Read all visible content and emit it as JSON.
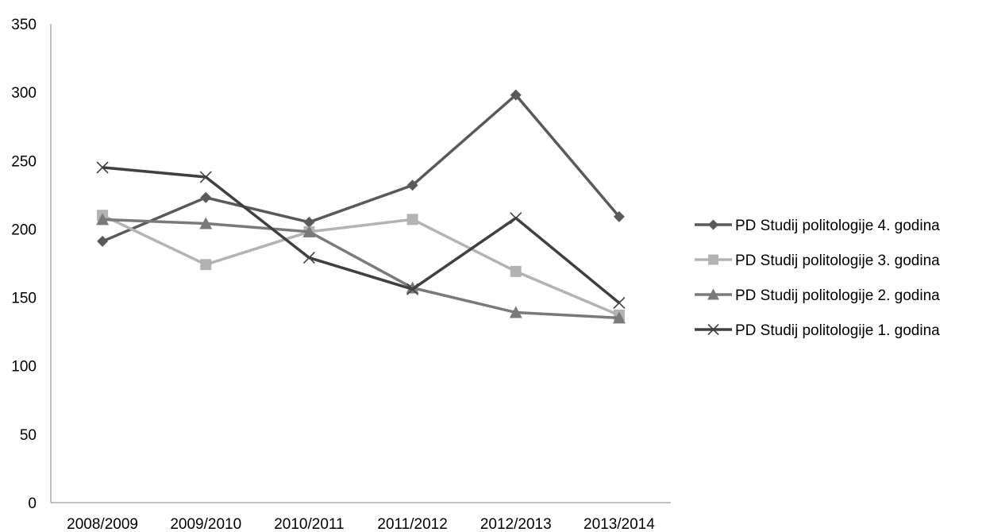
{
  "chart_data": {
    "type": "line",
    "title": "",
    "xlabel": "",
    "ylabel": "",
    "categories": [
      "2008/2009",
      "2009/2010",
      "2010/2011",
      "2011/2012",
      "2012/2013",
      "2013/2014"
    ],
    "ylim": [
      0,
      350
    ],
    "yticks": [
      0,
      50,
      100,
      150,
      200,
      250,
      300,
      350
    ],
    "grid": false,
    "legend_position": "right",
    "series": [
      {
        "name": "PD Studij politologije 4. godina",
        "marker": "diamond",
        "color": "#5a5a5a",
        "values": [
          191,
          223,
          205,
          232,
          298,
          209
        ]
      },
      {
        "name": "PD Studij politologije 3. godina",
        "marker": "square",
        "color": "#b3b3b3",
        "values": [
          210,
          174,
          198,
          207,
          169,
          137
        ]
      },
      {
        "name": "PD Studij politologije 2. godina",
        "marker": "triangle",
        "color": "#7a7a7a",
        "values": [
          207,
          204,
          198,
          157,
          139,
          135
        ]
      },
      {
        "name": "PD Studij politologije 1. godina",
        "marker": "x",
        "color": "#404040",
        "values": [
          245,
          238,
          179,
          156,
          208,
          146
        ]
      }
    ]
  }
}
